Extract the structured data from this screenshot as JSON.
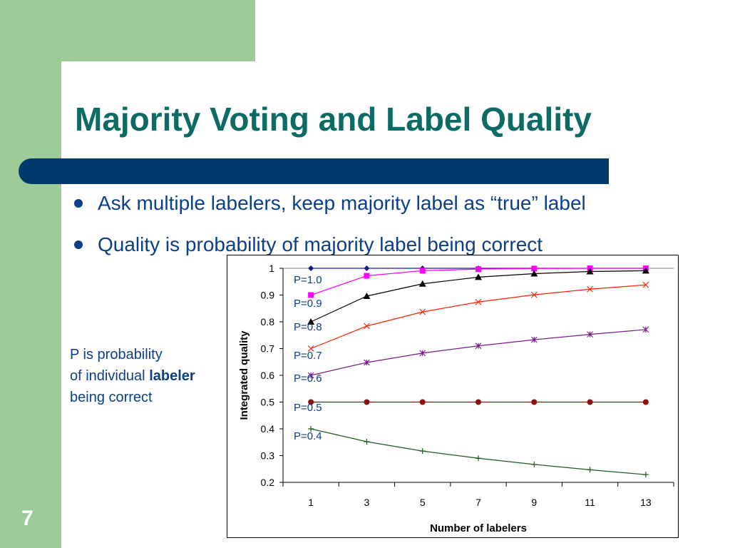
{
  "slide": {
    "title": "Majority Voting and Label Quality",
    "bullets": [
      "Ask multiple labelers, keep majority label as “true” label",
      "Quality is probability of majority label being correct"
    ],
    "side_note": {
      "line1": "P is probability",
      "line2_prefix": "of individual ",
      "line2_bold": "labeler",
      "line3": "being correct"
    },
    "slide_number": "7"
  },
  "colors": {
    "background_green": "#9dcc98",
    "title_teal": "#0d6b66",
    "title_bar_navy": "#003a6b",
    "text_blue": "#0b3f87"
  },
  "chart_data": {
    "type": "line",
    "title": "",
    "xlabel": "Number of labelers",
    "ylabel": "Integrated quality",
    "x": [
      1,
      3,
      5,
      7,
      9,
      11,
      13
    ],
    "ylim": [
      0.2,
      1
    ],
    "yticks": [
      "0.2",
      "0.3",
      "0.4",
      "0.5",
      "0.6",
      "0.7",
      "0.8",
      "0.9",
      "1"
    ],
    "xticks": [
      "1",
      "3",
      "5",
      "7",
      "9",
      "11",
      "13"
    ],
    "grid": "horizontal line at 1 only",
    "series": [
      {
        "label": "P=1.0",
        "color": "#1a1a8c",
        "marker": "diamond",
        "values": [
          1.0,
          1.0,
          1.0,
          1.0,
          1.0,
          1.0,
          1.0
        ]
      },
      {
        "label": "P=0.9",
        "color": "#ff00ff",
        "marker": "square",
        "values": [
          0.9,
          0.972,
          0.991,
          0.997,
          0.999,
          1.0,
          1.0
        ]
      },
      {
        "label": "P=0.8",
        "color": "#000000",
        "marker": "triangle",
        "values": [
          0.8,
          0.896,
          0.942,
          0.967,
          0.98,
          0.988,
          0.991
        ]
      },
      {
        "label": "P=0.7",
        "color": "#ff2200",
        "marker": "x",
        "values": [
          0.7,
          0.784,
          0.837,
          0.874,
          0.901,
          0.922,
          0.938
        ]
      },
      {
        "label": "P=0.6",
        "color": "#7a1a8c",
        "marker": "star",
        "values": [
          0.6,
          0.648,
          0.683,
          0.71,
          0.733,
          0.753,
          0.771
        ]
      },
      {
        "label": "P=0.5",
        "color": "#8b1010",
        "marker": "circle",
        "values": [
          0.5,
          0.5,
          0.5,
          0.5,
          0.5,
          0.5,
          0.5
        ]
      },
      {
        "label": "P=0.4",
        "color": "#1a5c1a",
        "marker": "plus",
        "values": [
          0.4,
          0.352,
          0.317,
          0.29,
          0.267,
          0.247,
          0.229
        ]
      }
    ]
  }
}
